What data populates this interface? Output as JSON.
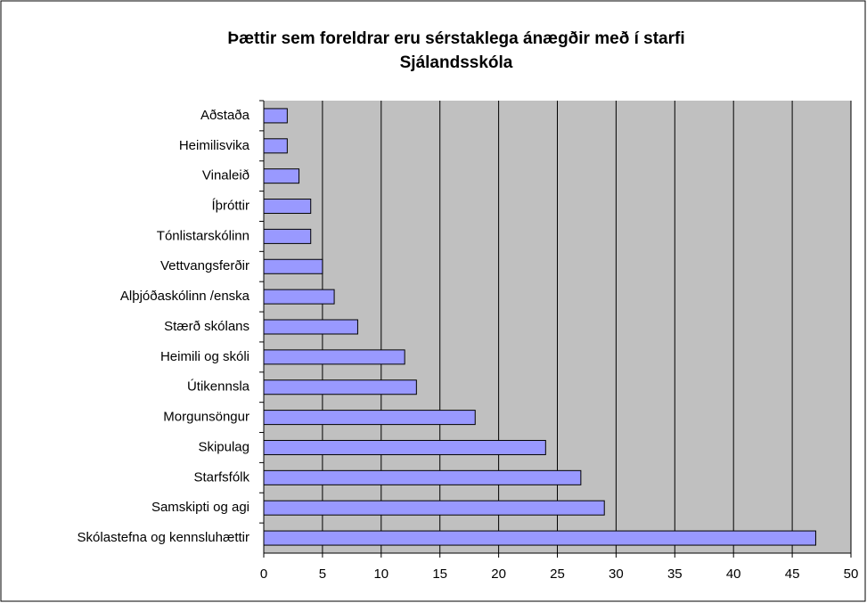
{
  "chart_data": {
    "type": "barh",
    "title": [
      "Þættir sem foreldrar eru sérstaklega ánægðir með í starfi",
      "Sjálandsskóla"
    ],
    "categories": [
      "Aðstaða",
      "Heimilisvika",
      "Vinaleið",
      "Íþróttir",
      "Tónlistarskólinn",
      "Vettvangsferðir",
      "Alþjóðaskólinn /enska",
      "Stærð skólans",
      "Heimili og skóli",
      "Útikennsla",
      "Morgunsöngur",
      "Skipulag",
      "Starfsfólk",
      "Samskipti og agi",
      "Skólastefna og kennsluhættir"
    ],
    "values": [
      2,
      2,
      3,
      4,
      4,
      5,
      6,
      8,
      12,
      13,
      18,
      24,
      27,
      29,
      47
    ],
    "color": "#9999ff",
    "xlim": [
      0,
      50
    ],
    "xticks": [
      0,
      5,
      10,
      15,
      20,
      25,
      30,
      35,
      40,
      45,
      50
    ],
    "grid": true
  }
}
